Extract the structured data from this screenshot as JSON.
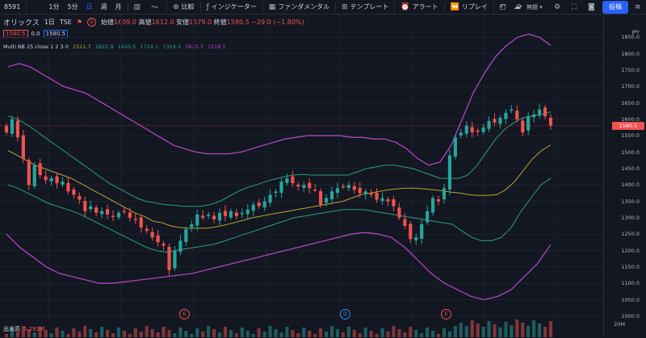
{
  "toolbar": {
    "symbol": "8591",
    "intervals": [
      "1分",
      "5分",
      "日",
      "週",
      "月"
    ],
    "compare_label": "比較",
    "indicators_label": "インジケーター",
    "fundamentals_label": "ファンダメンタル",
    "templates_label": "テンプレート",
    "alert_label": "アラート",
    "replay_label": "リプレイ",
    "cloud_label": "無題",
    "post_label": "投稿"
  },
  "legend": {
    "name": "オリックス",
    "timeframe": "1日",
    "exchange": "TSE",
    "open_label": "始値",
    "open": "1609.0",
    "high_label": "高値",
    "high": "1612.0",
    "low_label": "安値",
    "low": "1579.0",
    "close_label": "終値",
    "close": "1580.5",
    "change": "−29.0 (−1.80%)",
    "bid": "1580.5",
    "spread": "0.0",
    "ask": "1580.5"
  },
  "indicator": {
    "name": "Multi BB 25 close 1 2 3 0",
    "v1": "1521.7",
    "v2": "1622.9",
    "v3": "1420.5",
    "v4": "1724.1",
    "v5": "1319.3",
    "v6": "1825.3",
    "v7": "1218.1"
  },
  "axis": {
    "currency": "JPY",
    "ticks": [
      "1850.0",
      "1800.0",
      "1750.0",
      "1700.0",
      "1650.0",
      "1600.0",
      "1550.0",
      "1500.0",
      "1450.0",
      "1400.0",
      "1350.0",
      "1300.0",
      "1250.0",
      "1200.0",
      "1150.0",
      "1100.0",
      "1050.0",
      "1000.0"
    ],
    "last_price": "1580.5",
    "volume_tick": "20M"
  },
  "volume": {
    "label": "出来高",
    "value": "5.293M"
  },
  "events": [
    "E",
    "D",
    "E"
  ],
  "colors": {
    "up": "#26a69a",
    "down": "#ef5350",
    "bb1": "#26a69a",
    "bb2": "#2ca07a",
    "bb3": "#ab47bc",
    "basis": "#b8a330"
  },
  "chart_data": {
    "type": "candlestick",
    "title": "オリックス 1日 TSE",
    "ylim": [
      980,
      1890
    ],
    "close": [
      1560,
      1600,
      1545,
      1480,
      1400,
      1460,
      1430,
      1415,
      1420,
      1405,
      1410,
      1380,
      1370,
      1355,
      1320,
      1335,
      1315,
      1320,
      1310,
      1305,
      1315,
      1320,
      1300,
      1295,
      1270,
      1260,
      1240,
      1225,
      1215,
      1140,
      1200,
      1230,
      1265,
      1280,
      1310,
      1300,
      1310,
      1295,
      1315,
      1305,
      1320,
      1305,
      1315,
      1325,
      1340,
      1335,
      1350,
      1370,
      1380,
      1410,
      1420,
      1405,
      1395,
      1400,
      1390,
      1385,
      1340,
      1360,
      1380,
      1390,
      1395,
      1400,
      1385,
      1375,
      1380,
      1370,
      1355,
      1360,
      1350,
      1335,
      1300,
      1275,
      1235,
      1240,
      1280,
      1320,
      1360,
      1350,
      1390,
      1490,
      1545,
      1560,
      1580,
      1560,
      1565,
      1575,
      1595,
      1590,
      1605,
      1620,
      1630,
      1600,
      1560,
      1610,
      1615,
      1630,
      1609,
      1580.5
    ],
    "basis": [
      1505,
      1490,
      1475,
      1460,
      1450,
      1440,
      1430,
      1420,
      1405,
      1390,
      1375,
      1360,
      1345,
      1330,
      1315,
      1305,
      1290,
      1285,
      1275,
      1270,
      1268,
      1268,
      1268,
      1272,
      1278,
      1285,
      1292,
      1300,
      1305,
      1310,
      1315,
      1320,
      1325,
      1330,
      1335,
      1340,
      1345,
      1350,
      1360,
      1370,
      1375,
      1380,
      1385,
      1388,
      1390,
      1390,
      1388,
      1385,
      1382,
      1378,
      1375,
      1370,
      1368,
      1368,
      1370,
      1385,
      1410,
      1445,
      1480,
      1505,
      1521.7
    ],
    "upper_1": [
      1610,
      1600,
      1585,
      1565,
      1545,
      1525,
      1505,
      1485,
      1465,
      1445,
      1425,
      1405,
      1390,
      1375,
      1360,
      1350,
      1345,
      1340,
      1338,
      1335,
      1335,
      1335,
      1340,
      1350,
      1365,
      1380,
      1392,
      1400,
      1410,
      1418,
      1425,
      1430,
      1432,
      1430,
      1430,
      1430,
      1430,
      1430,
      1440,
      1450,
      1455,
      1460,
      1460,
      1455,
      1450,
      1440,
      1430,
      1420,
      1420,
      1420,
      1430,
      1460,
      1500,
      1540,
      1570,
      1590,
      1605,
      1610,
      1615,
      1622.9
    ],
    "lower_1": [
      1400,
      1390,
      1375,
      1360,
      1345,
      1335,
      1325,
      1315,
      1300,
      1285,
      1270,
      1255,
      1240,
      1225,
      1210,
      1200,
      1195,
      1200,
      1205,
      1210,
      1215,
      1220,
      1230,
      1240,
      1250,
      1260,
      1270,
      1280,
      1290,
      1300,
      1305,
      1310,
      1315,
      1320,
      1325,
      1325,
      1325,
      1320,
      1315,
      1310,
      1305,
      1300,
      1295,
      1290,
      1285,
      1280,
      1260,
      1240,
      1230,
      1230,
      1240,
      1270,
      1320,
      1360,
      1400,
      1420.5
    ],
    "upper_3": [
      1760,
      1770,
      1760,
      1740,
      1720,
      1700,
      1690,
      1680,
      1660,
      1640,
      1620,
      1600,
      1580,
      1560,
      1540,
      1520,
      1510,
      1500,
      1495,
      1495,
      1495,
      1500,
      1510,
      1520,
      1530,
      1540,
      1545,
      1550,
      1550,
      1550,
      1550,
      1545,
      1545,
      1540,
      1540,
      1530,
      1510,
      1480,
      1460,
      1470,
      1520,
      1600,
      1680,
      1740,
      1790,
      1825,
      1850,
      1860,
      1850,
      1825.3
    ],
    "lower_3": [
      1250,
      1210,
      1180,
      1150,
      1130,
      1120,
      1110,
      1100,
      1100,
      1105,
      1110,
      1115,
      1120,
      1125,
      1130,
      1140,
      1150,
      1160,
      1170,
      1180,
      1190,
      1200,
      1210,
      1220,
      1230,
      1240,
      1250,
      1255,
      1250,
      1240,
      1210,
      1170,
      1130,
      1100,
      1080,
      1060,
      1050,
      1060,
      1080,
      1120,
      1160,
      1218.1
    ]
  }
}
